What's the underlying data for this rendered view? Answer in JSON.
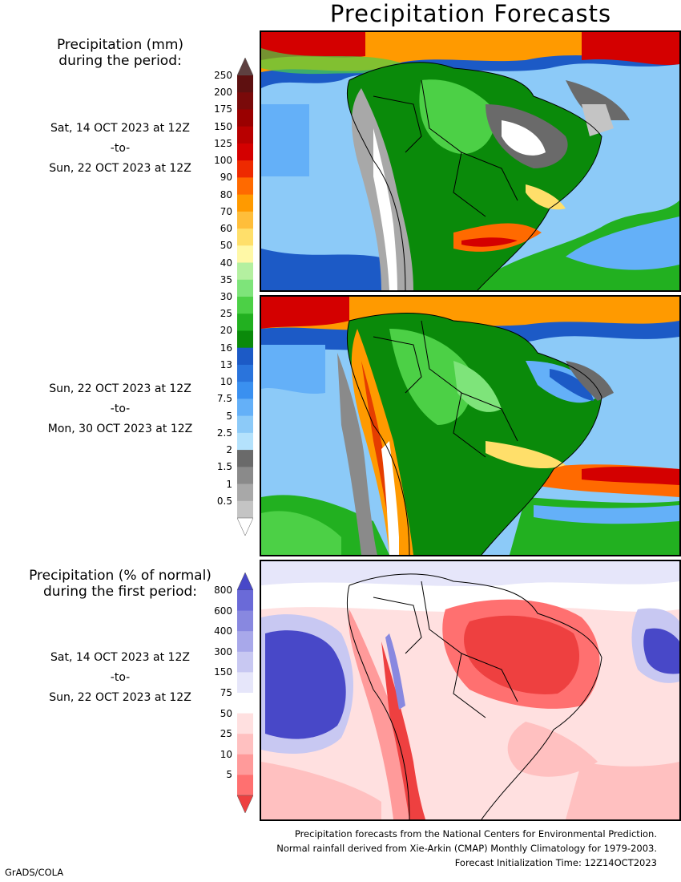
{
  "title": "Precipitation Forecasts",
  "mm_heading": [
    "Precipitation (mm)",
    "during the period:"
  ],
  "period1": {
    "start": "Sat, 14 OCT 2023 at 12Z",
    "to": "-to-",
    "end": "Sun, 22 OCT 2023 at 12Z"
  },
  "period2": {
    "start": "Sun, 22 OCT 2023 at 12Z",
    "to": "-to-",
    "end": "Mon, 30 OCT 2023 at 12Z"
  },
  "pct_heading": [
    "Precipitation (% of normal)",
    "during the first period:"
  ],
  "period3": {
    "start": "Sat, 14 OCT 2023 at 12Z",
    "to": "-to-",
    "end": "Sun, 22 OCT 2023 at 12Z"
  },
  "mm_scale": {
    "labels": [
      "250",
      "200",
      "175",
      "150",
      "125",
      "100",
      "90",
      "80",
      "70",
      "60",
      "50",
      "40",
      "35",
      "30",
      "25",
      "20",
      "16",
      "13",
      "10",
      "7.5",
      "5",
      "2.5",
      "2",
      "1.5",
      "1",
      "0.5"
    ],
    "colors": [
      "#5e1010",
      "#7a0a0a",
      "#9a0000",
      "#b80000",
      "#d40000",
      "#ee2a00",
      "#ff6a00",
      "#ff9a00",
      "#ffbe3a",
      "#ffdf6a",
      "#fff8a6",
      "#b4f0a0",
      "#7ee47a",
      "#4cd046",
      "#22b020",
      "#0a8a0a",
      "#1c5ac6",
      "#2a74dc",
      "#3a90f0",
      "#64b0f8",
      "#8ccaf8",
      "#b4e2fc",
      "#6a6a6a",
      "#8a8a8a",
      "#a8a8a8",
      "#c4c4c4"
    ],
    "top_color": "#5e4040",
    "bottom_color": "#ffffff"
  },
  "pct_scale": {
    "labels": [
      "800",
      "600",
      "400",
      "300",
      "150",
      "75",
      "50",
      "25",
      "10",
      "5"
    ],
    "colors": [
      "#6a6ad8",
      "#8888e0",
      "#a8a8ea",
      "#c8c8f2",
      "#e6e6fa",
      "#ffffff",
      "#ffe0e0",
      "#ffc0c0",
      "#ff9a9a",
      "#ff7070"
    ],
    "top_color": "#4848c8",
    "bottom_color": "#ee4040"
  },
  "footer": [
    "Precipitation forecasts from the National Centers for Environmental Prediction.",
    "Normal rainfall derived from Xie-Arkin (CMAP) Monthly Climatology for 1979-2003.",
    "Forecast Initialization Time: 12Z14OCT2023"
  ],
  "credit": "GrADS/COLA"
}
